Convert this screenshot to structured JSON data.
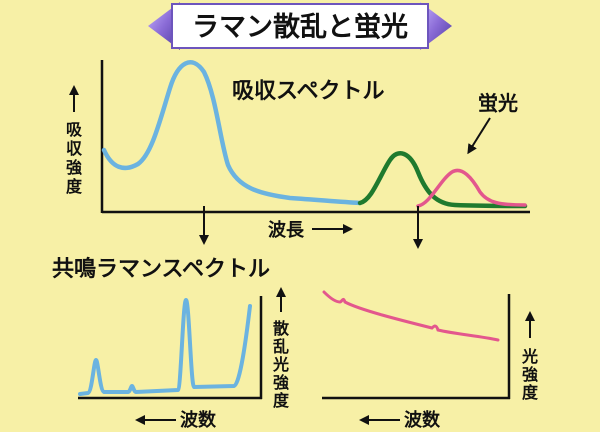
{
  "title": "ラマン散乱と蛍光",
  "top_panel": {
    "label": "吸収スペクトル",
    "y_axis_label": [
      "吸",
      "収",
      "強",
      "度"
    ],
    "x_axis_label": "波長",
    "fluorescence_label": "蛍光"
  },
  "middle_label": "共鳴ラマンスペクトル",
  "bottom_left": {
    "x_axis_label": "波数",
    "y_axis_label": [
      "散",
      "乱",
      "光",
      "強",
      "度"
    ]
  },
  "bottom_right": {
    "x_axis_label": "波数",
    "y_axis_label": [
      "光",
      "強",
      "度"
    ]
  },
  "colors": {
    "background": "#f7f0a6",
    "absorption_curve": "#6bb3e0",
    "green_curve": "#1f7a2e",
    "fluorescence_curve": "#e3578d",
    "title_box": "#ffffff",
    "title_prism": "#8a6bd6"
  }
}
